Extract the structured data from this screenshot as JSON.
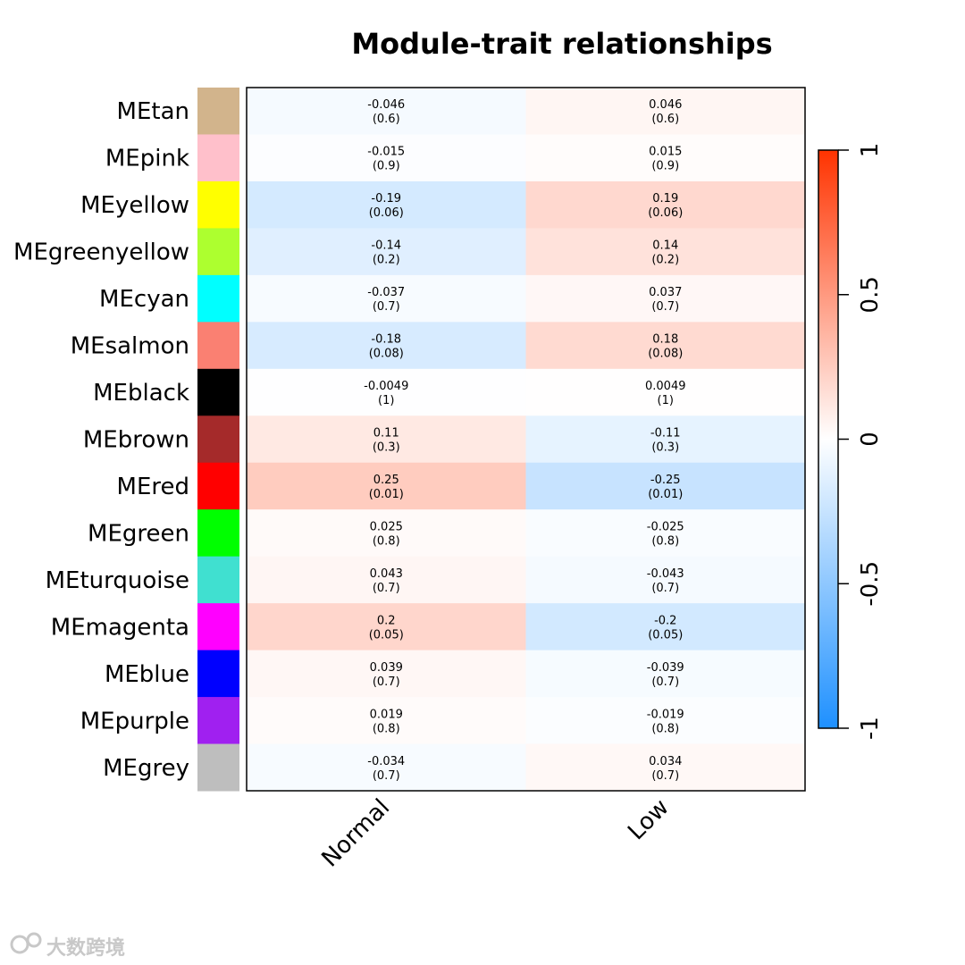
{
  "chart_data": {
    "type": "heatmap",
    "title": "Module-trait relationships",
    "columns": [
      "Normal",
      "Low"
    ],
    "rows": [
      {
        "module": "MEtan",
        "color": "#D2B48C",
        "cor": [
          -0.046,
          0.046
        ],
        "p": [
          "(0.6)",
          "(0.6)"
        ],
        "cor_label": [
          "-0.046",
          "0.046"
        ]
      },
      {
        "module": "MEpink",
        "color": "#FFC0CB",
        "cor": [
          -0.015,
          0.015
        ],
        "p": [
          "(0.9)",
          "(0.9)"
        ],
        "cor_label": [
          "-0.015",
          "0.015"
        ]
      },
      {
        "module": "MEyellow",
        "color": "#FFFF00",
        "cor": [
          -0.19,
          0.19
        ],
        "p": [
          "(0.06)",
          "(0.06)"
        ],
        "cor_label": [
          "-0.19",
          "0.19"
        ]
      },
      {
        "module": "MEgreenyellow",
        "color": "#ADFF2F",
        "cor": [
          -0.14,
          0.14
        ],
        "p": [
          "(0.2)",
          "(0.2)"
        ],
        "cor_label": [
          "-0.14",
          "0.14"
        ]
      },
      {
        "module": "MEcyan",
        "color": "#00FFFF",
        "cor": [
          -0.037,
          0.037
        ],
        "p": [
          "(0.7)",
          "(0.7)"
        ],
        "cor_label": [
          "-0.037",
          "0.037"
        ]
      },
      {
        "module": "MEsalmon",
        "color": "#FA8072",
        "cor": [
          -0.18,
          0.18
        ],
        "p": [
          "(0.08)",
          "(0.08)"
        ],
        "cor_label": [
          "-0.18",
          "0.18"
        ]
      },
      {
        "module": "MEblack",
        "color": "#000000",
        "cor": [
          -0.0049,
          0.0049
        ],
        "p": [
          "(1)",
          "(1)"
        ],
        "cor_label": [
          "-0.0049",
          "0.0049"
        ]
      },
      {
        "module": "MEbrown",
        "color": "#A52A2A",
        "cor": [
          0.11,
          -0.11
        ],
        "p": [
          "(0.3)",
          "(0.3)"
        ],
        "cor_label": [
          "0.11",
          "-0.11"
        ]
      },
      {
        "module": "MEred",
        "color": "#FF0000",
        "cor": [
          0.25,
          -0.25
        ],
        "p": [
          "(0.01)",
          "(0.01)"
        ],
        "cor_label": [
          "0.25",
          "-0.25"
        ]
      },
      {
        "module": "MEgreen",
        "color": "#00FF00",
        "cor": [
          0.025,
          -0.025
        ],
        "p": [
          "(0.8)",
          "(0.8)"
        ],
        "cor_label": [
          "0.025",
          "-0.025"
        ]
      },
      {
        "module": "MEturquoise",
        "color": "#40E0D0",
        "cor": [
          0.043,
          -0.043
        ],
        "p": [
          "(0.7)",
          "(0.7)"
        ],
        "cor_label": [
          "0.043",
          "-0.043"
        ]
      },
      {
        "module": "MEmagenta",
        "color": "#FF00FF",
        "cor": [
          0.2,
          -0.2
        ],
        "p": [
          "(0.05)",
          "(0.05)"
        ],
        "cor_label": [
          "0.2",
          "-0.2"
        ]
      },
      {
        "module": "MEblue",
        "color": "#0000FF",
        "cor": [
          0.039,
          -0.039
        ],
        "p": [
          "(0.7)",
          "(0.7)"
        ],
        "cor_label": [
          "0.039",
          "-0.039"
        ]
      },
      {
        "module": "MEpurple",
        "color": "#A020F0",
        "cor": [
          0.019,
          -0.019
        ],
        "p": [
          "(0.8)",
          "(0.8)"
        ],
        "cor_label": [
          "0.019",
          "-0.019"
        ]
      },
      {
        "module": "MEgrey",
        "color": "#BEBEBE",
        "cor": [
          -0.034,
          0.034
        ],
        "p": [
          "(0.7)",
          "(0.7)"
        ],
        "cor_label": [
          "-0.034",
          "0.034"
        ]
      }
    ],
    "colorscale": {
      "range": [
        -1,
        1
      ],
      "low_color": "#1E90FF",
      "mid_color": "#FFFFFF",
      "high_color": "#FF3300",
      "ticks": [
        -1,
        -0.5,
        0,
        0.5,
        1
      ],
      "tick_labels": [
        "-1",
        "-0.5",
        "0",
        "0.5",
        "1"
      ]
    }
  },
  "watermark": {
    "text": "大数跨境"
  }
}
